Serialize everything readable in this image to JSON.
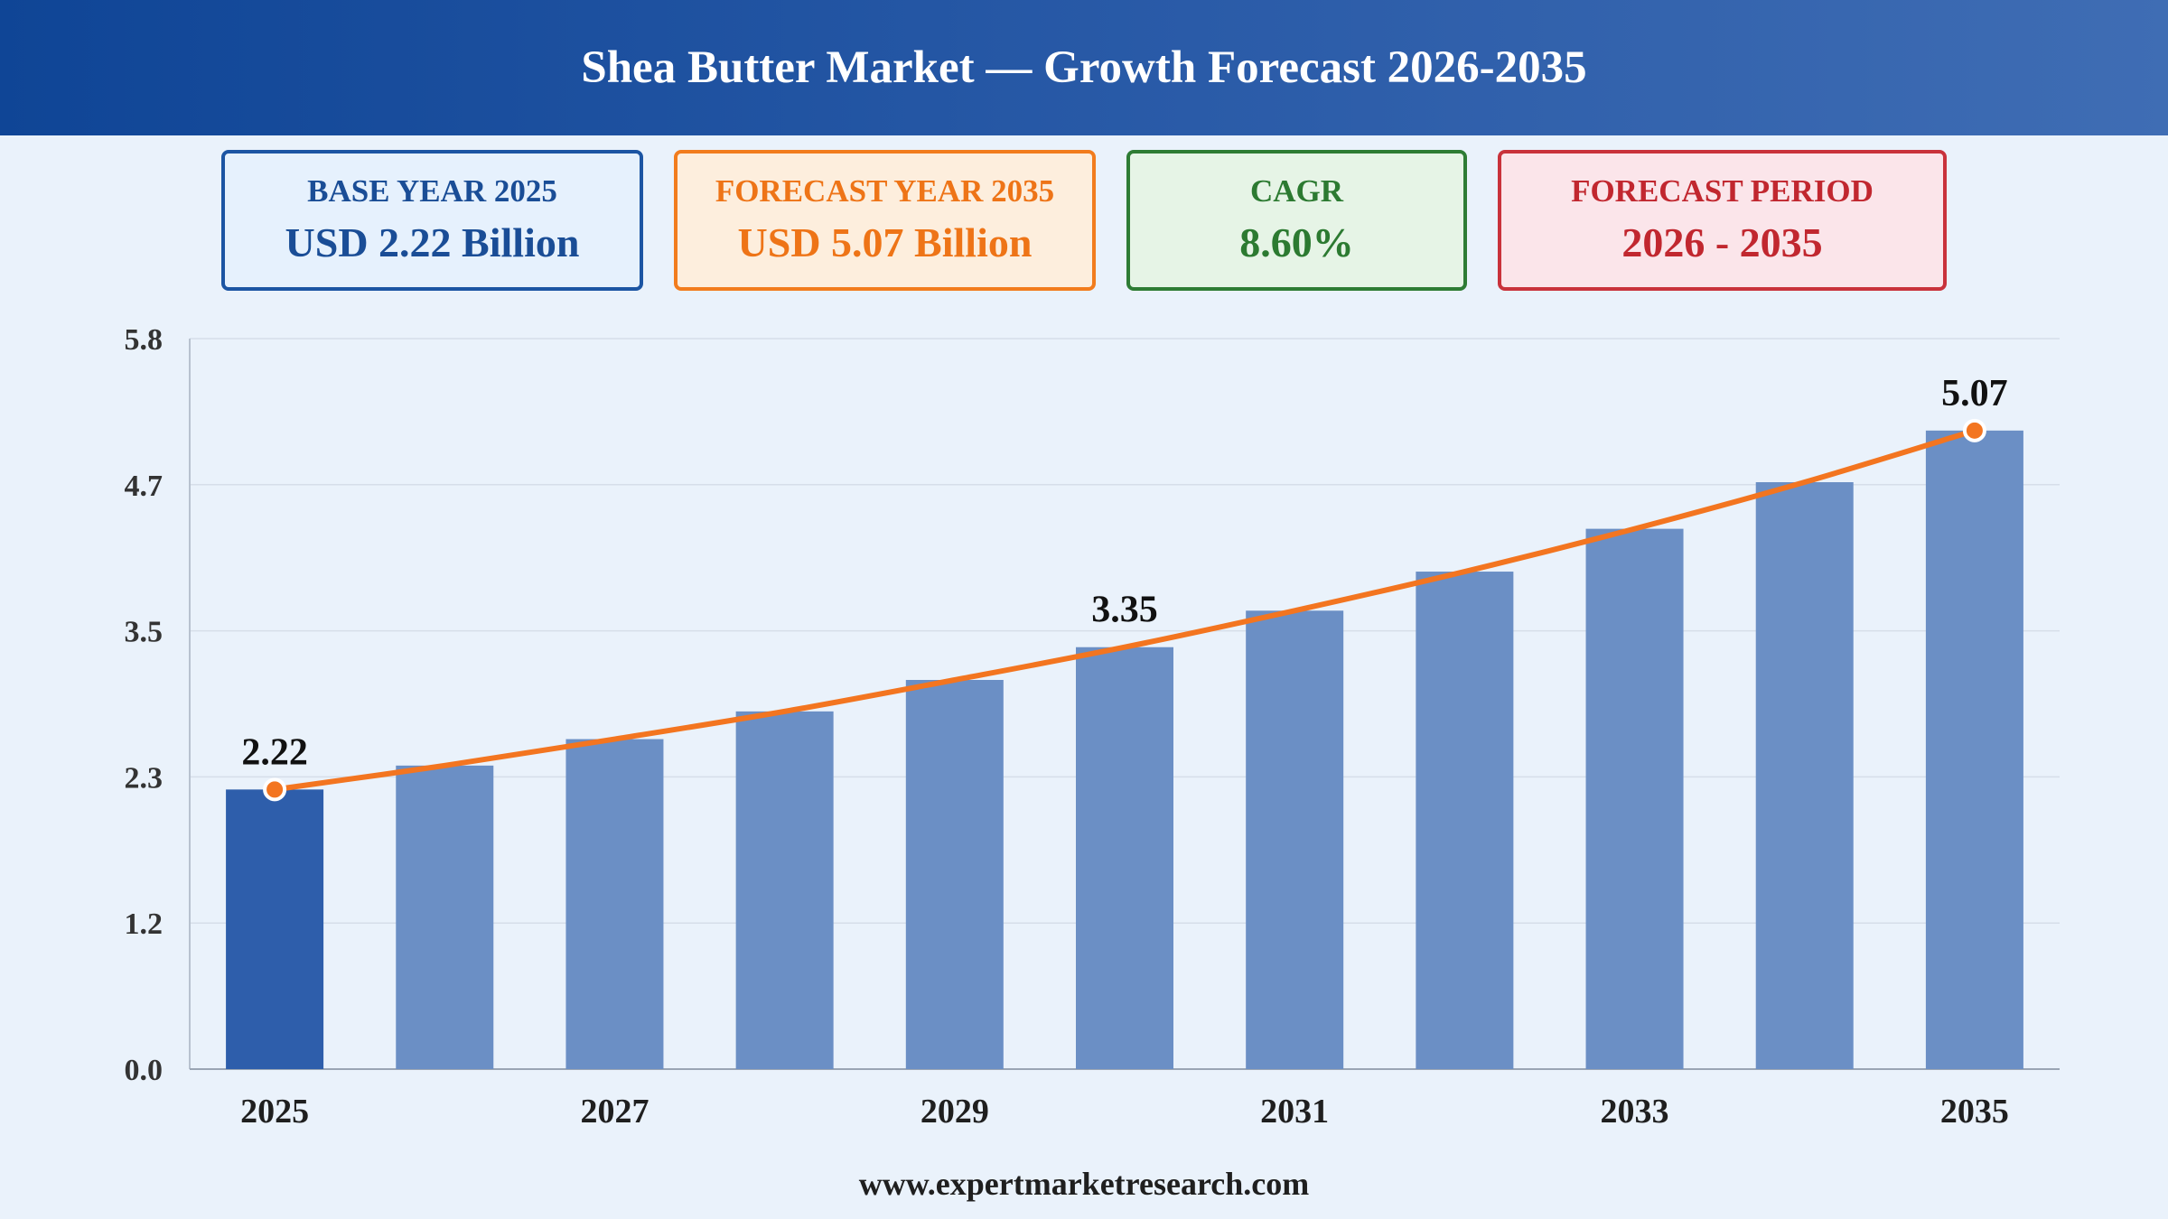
{
  "header": {
    "title": "Shea Butter Market — Growth Forecast 2026-2035"
  },
  "kpis": {
    "base": {
      "label": "BASE YEAR 2025",
      "value": "USD 2.22 Billion"
    },
    "forecast": {
      "label": "FORECAST YEAR 2035",
      "value": "USD 5.07 Billion"
    },
    "cagr": {
      "label": "CAGR",
      "value": "8.60%"
    },
    "period": {
      "label": "FORECAST PERIOD",
      "value": "2026 - 2035"
    }
  },
  "chart_data": {
    "type": "bar",
    "categories": [
      "2025",
      "2026",
      "2027",
      "2028",
      "2029",
      "2030",
      "2031",
      "2032",
      "2033",
      "2034",
      "2035"
    ],
    "values": [
      2.22,
      2.41,
      2.62,
      2.84,
      3.09,
      3.35,
      3.64,
      3.95,
      4.29,
      4.66,
      5.07
    ],
    "trend_line": [
      2.22,
      2.41,
      2.62,
      2.84,
      3.09,
      3.35,
      3.64,
      3.95,
      4.29,
      4.66,
      5.07
    ],
    "x_tick_labels": [
      "2025",
      "",
      "2027",
      "",
      "2029",
      "",
      "2031",
      "",
      "2033",
      "",
      "2035"
    ],
    "y_ticks": [
      "0.0",
      "1.2",
      "2.3",
      "3.5",
      "4.7",
      "5.8"
    ],
    "ylim": [
      0,
      5.8
    ],
    "data_labels": [
      {
        "index": 0,
        "text": "2.22"
      },
      {
        "index": 5,
        "text": "3.35"
      },
      {
        "index": 10,
        "text": "5.07"
      }
    ],
    "grid": true,
    "colors": {
      "bar": "#6b8fc5",
      "bar_highlight": "#2e5eab",
      "line": "#f37520",
      "grid": "#d6dee9"
    }
  },
  "footer": {
    "url": "www.expertmarketresearch.com"
  }
}
